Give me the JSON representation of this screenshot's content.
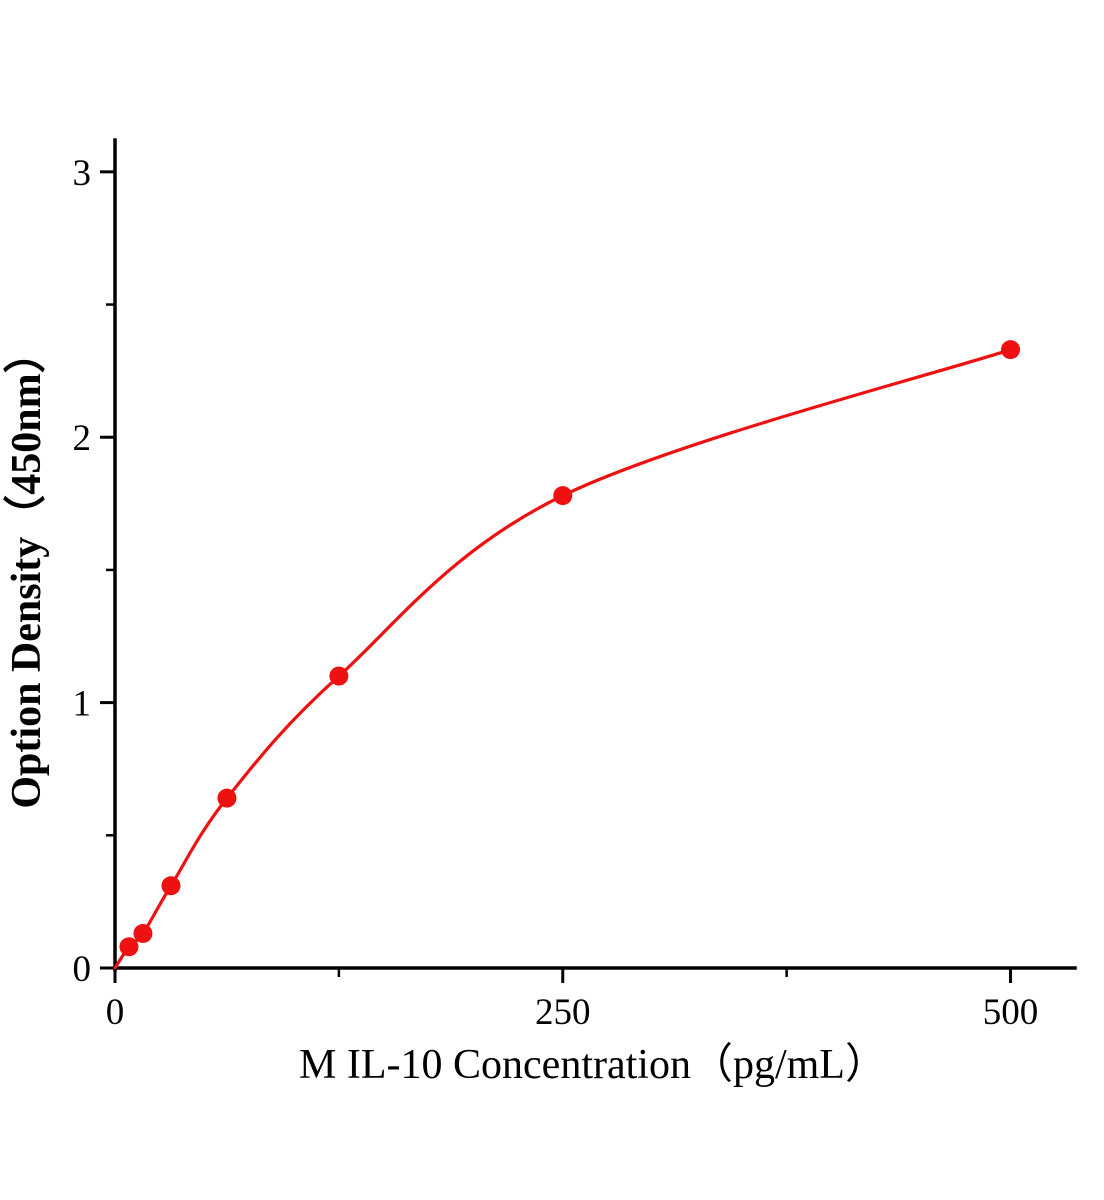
{
  "figure": {
    "background": "#ffffff"
  },
  "chart_data": {
    "type": "line",
    "title": "",
    "xlabel": "M IL-10 Concentration（pg/mL）",
    "ylabel": "Option Density（450nm）",
    "x": [
      0,
      7.8,
      15.6,
      31.25,
      62.5,
      125,
      250,
      500
    ],
    "series": [
      {
        "name": "M IL-10 standard curve",
        "values": [
          0,
          0.08,
          0.13,
          0.31,
          0.64,
          1.1,
          1.78,
          2.33
        ]
      }
    ],
    "xlim": [
      0,
      536
    ],
    "ylim": [
      0,
      3.12
    ],
    "x_ticks": [
      0,
      250,
      500
    ],
    "x_minor_ticks": [
      125,
      375
    ],
    "y_ticks": [
      0,
      1,
      2,
      3
    ],
    "y_minor_ticks": [
      0.5,
      1.5,
      2.5
    ],
    "line_color": "#ee1111",
    "marker_color": "#ee1111",
    "axis_color": "#000000",
    "marker": "circle",
    "marker_radius": 9.5,
    "show_marker_at_origin": false,
    "grid": false,
    "legend": "none"
  }
}
